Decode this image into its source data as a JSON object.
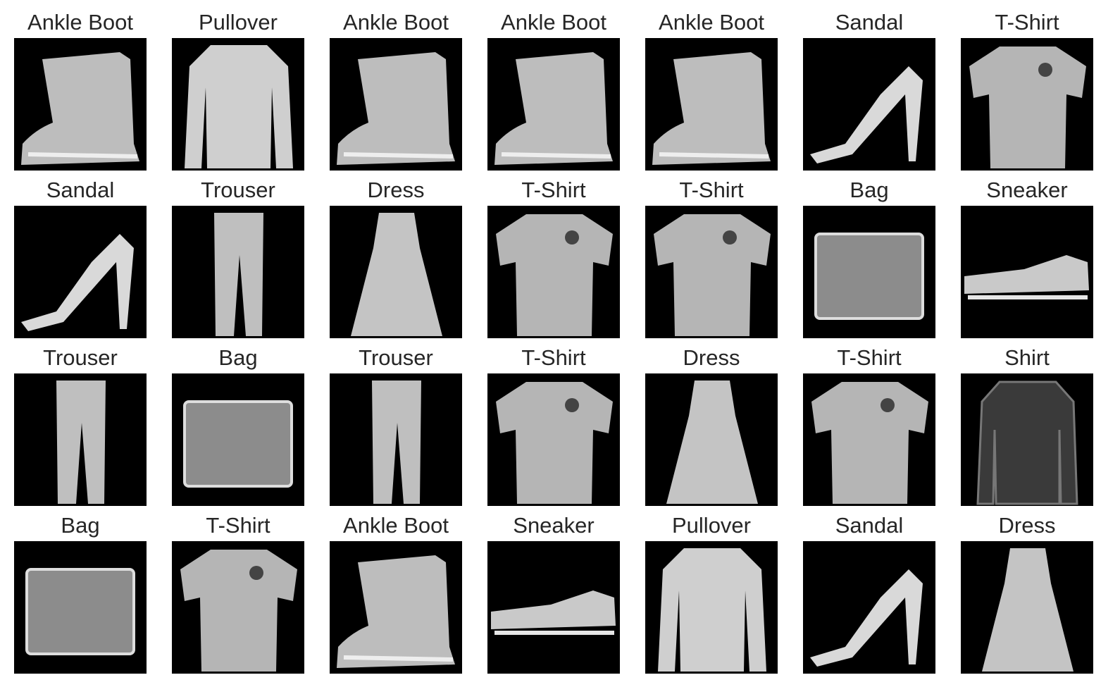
{
  "colors": {
    "background": "#ffffff",
    "thumb_bg": "#000000",
    "label": "#262626"
  },
  "images": [
    {
      "label": "Ankle Boot",
      "icon": "ankle-boot-icon"
    },
    {
      "label": "Pullover",
      "icon": "pullover-icon"
    },
    {
      "label": "Ankle Boot",
      "icon": "ankle-boot-icon"
    },
    {
      "label": "Ankle Boot",
      "icon": "ankle-boot-icon"
    },
    {
      "label": "Ankle Boot",
      "icon": "ankle-boot-icon"
    },
    {
      "label": "Sandal",
      "icon": "sandal-icon"
    },
    {
      "label": "T-Shirt",
      "icon": "t-shirt-icon"
    },
    {
      "label": "Sandal",
      "icon": "sandal-icon"
    },
    {
      "label": "Trouser",
      "icon": "trouser-icon"
    },
    {
      "label": "Dress",
      "icon": "dress-icon"
    },
    {
      "label": "T-Shirt",
      "icon": "t-shirt-icon"
    },
    {
      "label": "T-Shirt",
      "icon": "t-shirt-icon"
    },
    {
      "label": "Bag",
      "icon": "bag-icon"
    },
    {
      "label": "Sneaker",
      "icon": "sneaker-icon"
    },
    {
      "label": "Trouser",
      "icon": "trouser-icon"
    },
    {
      "label": "Bag",
      "icon": "bag-icon"
    },
    {
      "label": "Trouser",
      "icon": "trouser-icon"
    },
    {
      "label": "T-Shirt",
      "icon": "t-shirt-icon"
    },
    {
      "label": "Dress",
      "icon": "dress-icon"
    },
    {
      "label": "T-Shirt",
      "icon": "t-shirt-icon"
    },
    {
      "label": "Shirt",
      "icon": "shirt-icon"
    },
    {
      "label": "Bag",
      "icon": "bag-icon"
    },
    {
      "label": "T-Shirt",
      "icon": "t-shirt-icon"
    },
    {
      "label": "Ankle Boot",
      "icon": "ankle-boot-icon"
    },
    {
      "label": "Sneaker",
      "icon": "sneaker-icon"
    },
    {
      "label": "Pullover",
      "icon": "pullover-icon"
    },
    {
      "label": "Sandal",
      "icon": "sandal-icon"
    },
    {
      "label": "Dress",
      "icon": "dress-icon"
    }
  ]
}
